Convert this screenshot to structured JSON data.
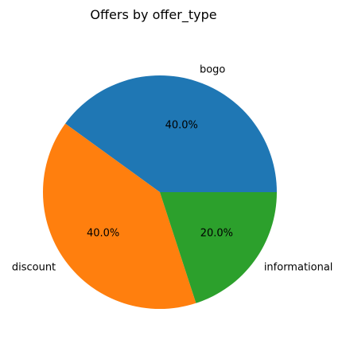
{
  "chart_data": {
    "type": "pie",
    "title": "Offers by offer_type",
    "categories": [
      "bogo",
      "discount",
      "informational"
    ],
    "values": [
      40.0,
      40.0,
      20.0
    ],
    "percent_labels": [
      "40.0%",
      "40.0%",
      "20.0%"
    ],
    "colors": [
      "#1f77b4",
      "#ff7f0e",
      "#2ca02c"
    ],
    "start_angle_deg": 0,
    "direction": "counterclockwise",
    "legend": "none"
  }
}
